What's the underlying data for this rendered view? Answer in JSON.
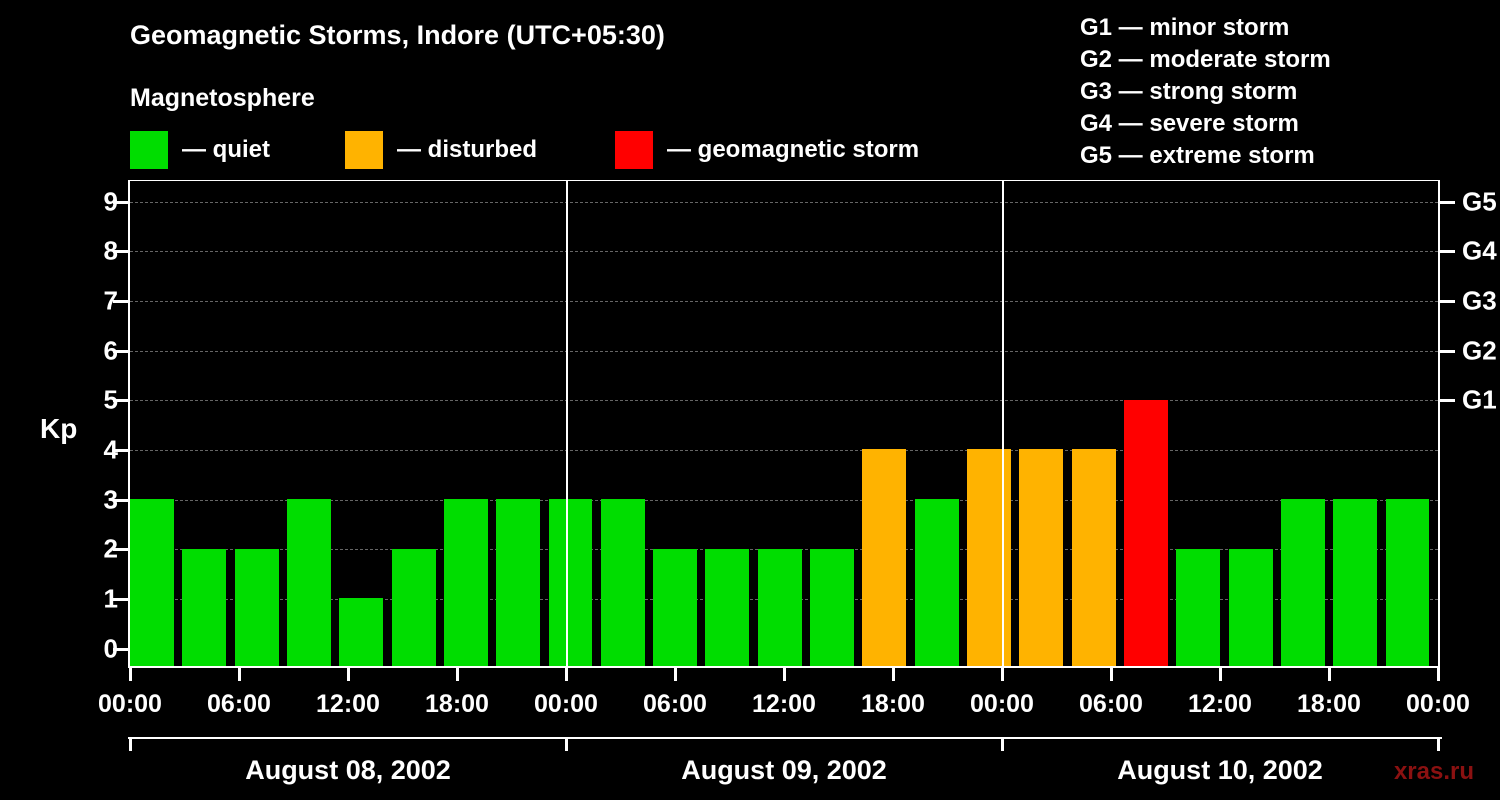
{
  "title": "Geomagnetic Storms, Indore (UTC+05:30)",
  "subtitle": "Magnetosphere",
  "watermark": "xras.ru",
  "colors": {
    "quiet": "#00dd00",
    "disturbed": "#ffb300",
    "storm": "#ff0000",
    "background": "#000000",
    "text": "#ffffff",
    "grid": "#666666",
    "watermark": "#8b1111"
  },
  "legend": [
    {
      "level": "quiet",
      "label": "— quiet"
    },
    {
      "level": "disturbed",
      "label": "— disturbed"
    },
    {
      "level": "storm",
      "label": "— geomagnetic storm"
    }
  ],
  "storm_scale_legend": [
    "G1 — minor storm",
    "G2 — moderate storm",
    "G3 — strong storm",
    "G4 — severe storm",
    "G5 — extreme storm"
  ],
  "y_axis": {
    "label": "Kp",
    "ticks": [
      0,
      1,
      2,
      3,
      4,
      5,
      6,
      7,
      8,
      9
    ]
  },
  "right_axis": {
    "ticks": [
      {
        "label": "G1",
        "kp": 5
      },
      {
        "label": "G2",
        "kp": 6
      },
      {
        "label": "G3",
        "kp": 7
      },
      {
        "label": "G4",
        "kp": 8
      },
      {
        "label": "G5",
        "kp": 9
      }
    ]
  },
  "x_axis": {
    "tick_labels": [
      "00:00",
      "06:00",
      "12:00",
      "18:00",
      "00:00",
      "06:00",
      "12:00",
      "18:00",
      "00:00",
      "06:00",
      "12:00",
      "18:00",
      "00:00"
    ],
    "tick_hours": [
      0,
      6,
      12,
      18,
      24,
      30,
      36,
      42,
      48,
      54,
      60,
      66,
      72
    ],
    "day_labels": [
      "August 08, 2002",
      "August 09, 2002",
      "August 10, 2002"
    ]
  },
  "chart_data": {
    "type": "bar",
    "title": "Geomagnetic Storms, Indore (UTC+05:30)",
    "ylabel": "Kp",
    "ylim": [
      0,
      9.5
    ],
    "x_hours_range": [
      0,
      72
    ],
    "interval_hours": 3,
    "grid": "dashed horizontal lines at integer Kp values",
    "legend_position": "top-left",
    "series": [
      {
        "date": "August 08, 2002",
        "kp": [
          3,
          2,
          2,
          3,
          1,
          2,
          3,
          3
        ]
      },
      {
        "date": "August 09, 2002",
        "kp": [
          3,
          3,
          2,
          2,
          2,
          2,
          4,
          3
        ]
      },
      {
        "date": "August 10, 2002",
        "kp": [
          4,
          4,
          4,
          5,
          2,
          2,
          3,
          3
        ]
      }
    ],
    "trailing_value": 3,
    "color_thresholds": {
      "quiet_max_kp": 3,
      "disturbed_kp": 4,
      "storm_min_kp": 5
    }
  }
}
